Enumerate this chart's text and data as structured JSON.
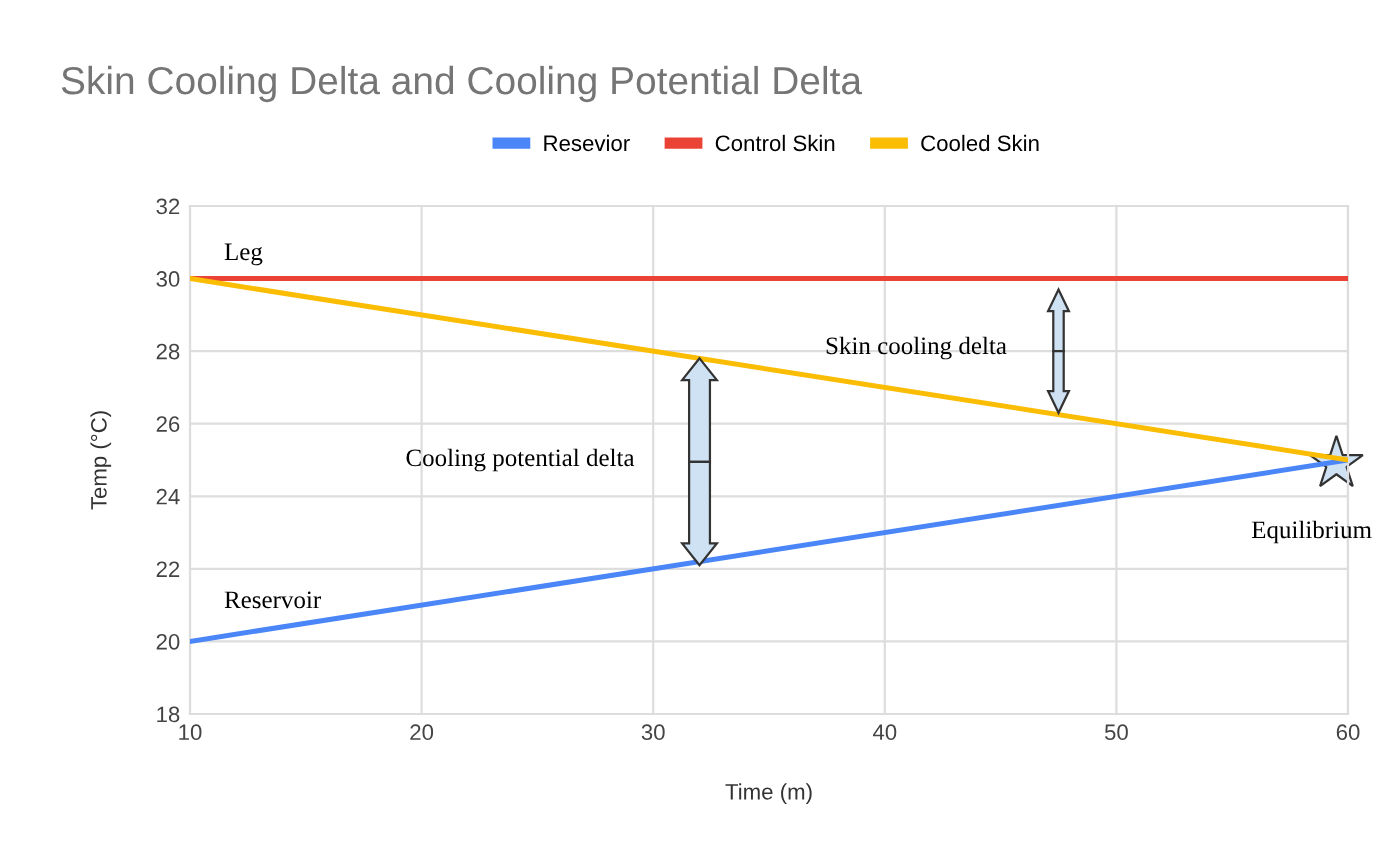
{
  "chart_data": {
    "type": "line",
    "title": "Skin Cooling Delta and Cooling Potential Delta",
    "xlabel": "Time (m)",
    "ylabel": "Temp (°C)",
    "x": [
      10,
      60
    ],
    "series": [
      {
        "name": "Resevior",
        "color": "#4a86f7",
        "values": [
          20,
          25
        ]
      },
      {
        "name": "Control Skin",
        "color": "#ea4335",
        "values": [
          30,
          30
        ]
      },
      {
        "name": "Cooled Skin",
        "color": "#fbbc04",
        "values": [
          30,
          25
        ]
      }
    ],
    "xlim": [
      10,
      60
    ],
    "xticks": [
      10,
      20,
      30,
      40,
      50,
      60
    ],
    "ylim": [
      18,
      32
    ],
    "yticks": [
      18,
      20,
      22,
      24,
      26,
      28,
      30,
      32
    ],
    "grid": true,
    "legend": "top",
    "marker": "none",
    "line_style": "solid",
    "annotations": [
      "Leg",
      "Skin cooling delta",
      "Cooling potential delta",
      "Reservoir",
      "Equilibrium"
    ]
  }
}
